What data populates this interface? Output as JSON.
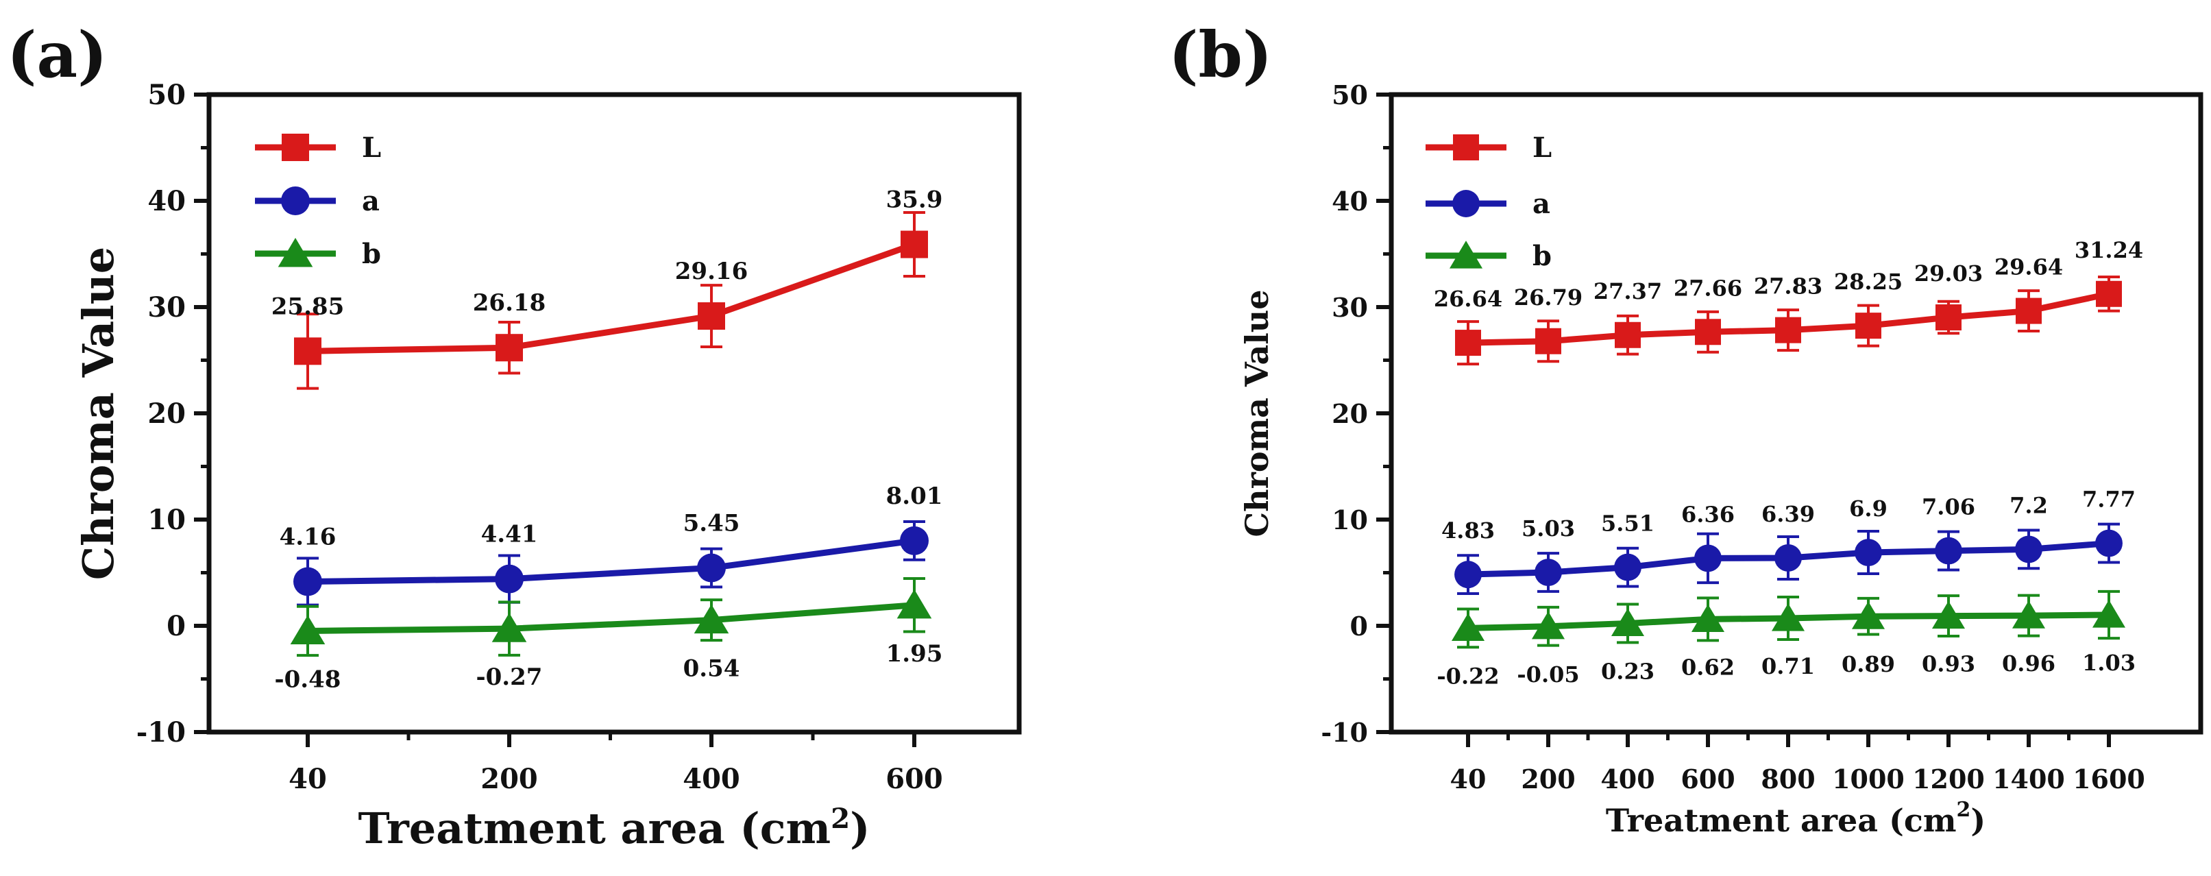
{
  "chart_data": [
    {
      "type": "line",
      "panel_label": "(a)",
      "xlabel": "Treatment area (cm",
      "xlabel_sup": "2",
      "xlabel_close": ")",
      "ylabel": "Chroma Value",
      "ylim": [
        -10,
        50
      ],
      "y_ticks": [
        "-10",
        "0",
        "10",
        "20",
        "30",
        "40",
        "50"
      ],
      "categories": [
        "40",
        "200",
        "400",
        "600"
      ],
      "legend_position": "top-left",
      "series": [
        {
          "name": "L",
          "color": "#d91a1a",
          "marker": "square",
          "values": [
            25.85,
            26.18,
            29.16,
            35.9
          ],
          "errors": [
            3.5,
            2.4,
            2.9,
            3.0
          ],
          "labels": [
            "25.85",
            "26.18",
            "29.16",
            "35.9"
          ],
          "label_side": "above"
        },
        {
          "name": "a",
          "color": "#1a1aa8",
          "marker": "circle",
          "values": [
            4.16,
            4.41,
            5.45,
            8.01
          ],
          "errors": [
            2.2,
            2.2,
            1.8,
            1.8
          ],
          "labels": [
            "4.16",
            "4.41",
            "5.45",
            "8.01"
          ],
          "label_side": "above"
        },
        {
          "name": "b",
          "color": "#1a8a1a",
          "marker": "triangle",
          "values": [
            -0.48,
            -0.27,
            0.54,
            1.95
          ],
          "errors": [
            2.3,
            2.5,
            1.9,
            2.5
          ],
          "labels": [
            "-0.48",
            "-0.27",
            "0.54",
            "1.95"
          ],
          "label_side": "below"
        }
      ]
    },
    {
      "type": "line",
      "panel_label": "(b)",
      "xlabel": "Treatment area (cm",
      "xlabel_sup": "2",
      "xlabel_close": ")",
      "ylabel": "Chroma Value",
      "ylim": [
        -10,
        50
      ],
      "y_ticks": [
        "-10",
        "0",
        "10",
        "20",
        "30",
        "40",
        "50"
      ],
      "categories": [
        "40",
        "200",
        "400",
        "600",
        "800",
        "1000",
        "1200",
        "1400",
        "1600"
      ],
      "legend_position": "top-left",
      "series": [
        {
          "name": "L",
          "color": "#d91a1a",
          "marker": "square",
          "values": [
            26.64,
            26.79,
            27.37,
            27.66,
            27.83,
            28.25,
            29.03,
            29.64,
            31.24
          ],
          "errors": [
            2.0,
            1.9,
            1.8,
            1.9,
            1.9,
            1.9,
            1.5,
            1.9,
            1.6
          ],
          "labels": [
            "26.64",
            "26.79",
            "27.37",
            "27.66",
            "27.83",
            "28.25",
            "29.03",
            "29.64",
            "31.24"
          ],
          "label_side": "above"
        },
        {
          "name": "a",
          "color": "#1a1aa8",
          "marker": "circle",
          "values": [
            4.83,
            5.03,
            5.51,
            6.36,
            6.39,
            6.9,
            7.06,
            7.2,
            7.77
          ],
          "errors": [
            1.8,
            1.8,
            1.8,
            2.3,
            2.0,
            2.0,
            1.8,
            1.8,
            1.8
          ],
          "labels": [
            "4.83",
            "5.03",
            "5.51",
            "6.36",
            "6.39",
            "6.9",
            "7.06",
            "7.2",
            "7.77"
          ],
          "label_side": "above"
        },
        {
          "name": "b",
          "color": "#1a8a1a",
          "marker": "triangle",
          "values": [
            -0.22,
            -0.05,
            0.23,
            0.62,
            0.71,
            0.89,
            0.93,
            0.96,
            1.03
          ],
          "errors": [
            1.8,
            1.8,
            1.8,
            2.0,
            2.0,
            1.7,
            1.9,
            1.9,
            2.2
          ],
          "labels": [
            "-0.22",
            "-0.05",
            "0.23",
            "0.62",
            "0.71",
            "0.89",
            "0.93",
            "0.96",
            "1.03"
          ],
          "label_side": "below"
        }
      ]
    }
  ]
}
